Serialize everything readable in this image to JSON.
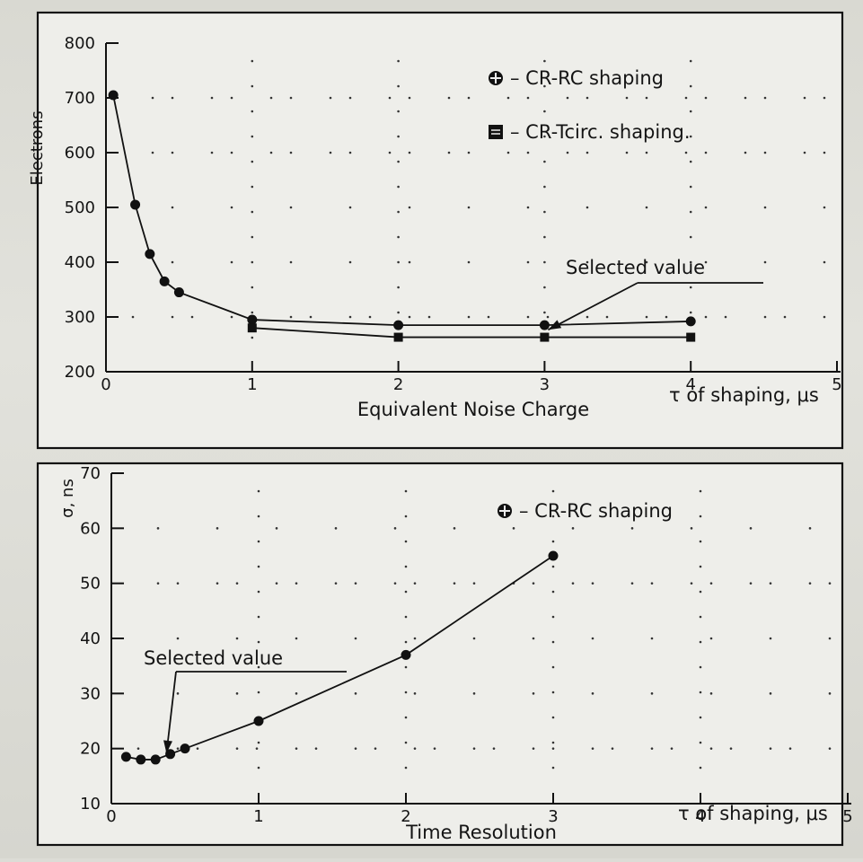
{
  "chart_data": [
    {
      "type": "line",
      "xlabel": "Equivalent Noise Charge",
      "xunit_label": "τ of shaping, μs",
      "ylabel": "Electrons",
      "xlim": [
        0,
        5
      ],
      "ylim": [
        200,
        800
      ],
      "x_ticks": [
        "0",
        "1",
        "2",
        "3",
        "4",
        "5"
      ],
      "y_ticks": [
        "200",
        "300",
        "400",
        "500",
        "600",
        "700",
        "800"
      ],
      "series": [
        {
          "name": "– CR-RC shaping",
          "marker": "circle",
          "x": [
            0.05,
            0.2,
            0.3,
            0.4,
            0.5,
            1.0,
            2.0,
            3.0,
            4.0
          ],
          "y": [
            705,
            505,
            415,
            365,
            345,
            295,
            285,
            285,
            292
          ]
        },
        {
          "name": "– CR-Tcirc. shaping.",
          "marker": "square",
          "x": [
            1.0,
            2.0,
            3.0,
            4.0
          ],
          "y": [
            280,
            263,
            263,
            263
          ]
        }
      ],
      "annotation": {
        "text": "Selected value",
        "x": 3.0,
        "y": 270
      },
      "grid": "dotted"
    },
    {
      "type": "line",
      "xlabel": "Time Resolution",
      "xunit_label": "τ of shaping, μs",
      "ylabel": "σ, ns",
      "xlim": [
        0,
        5
      ],
      "ylim": [
        10,
        70
      ],
      "x_ticks": [
        "0",
        "1",
        "2",
        "3",
        "4",
        "5"
      ],
      "y_ticks": [
        "10",
        "20",
        "30",
        "40",
        "50",
        "60",
        "70"
      ],
      "series": [
        {
          "name": "– CR-RC shaping",
          "marker": "circle",
          "x": [
            0.1,
            0.2,
            0.3,
            0.4,
            0.5,
            1.0,
            2.0,
            3.0
          ],
          "y": [
            18.5,
            18,
            18,
            19,
            20,
            25,
            37,
            55
          ]
        }
      ],
      "annotation": {
        "text": "Selected value",
        "x": 0.35,
        "y": 18.5
      },
      "grid": "dotted"
    }
  ]
}
